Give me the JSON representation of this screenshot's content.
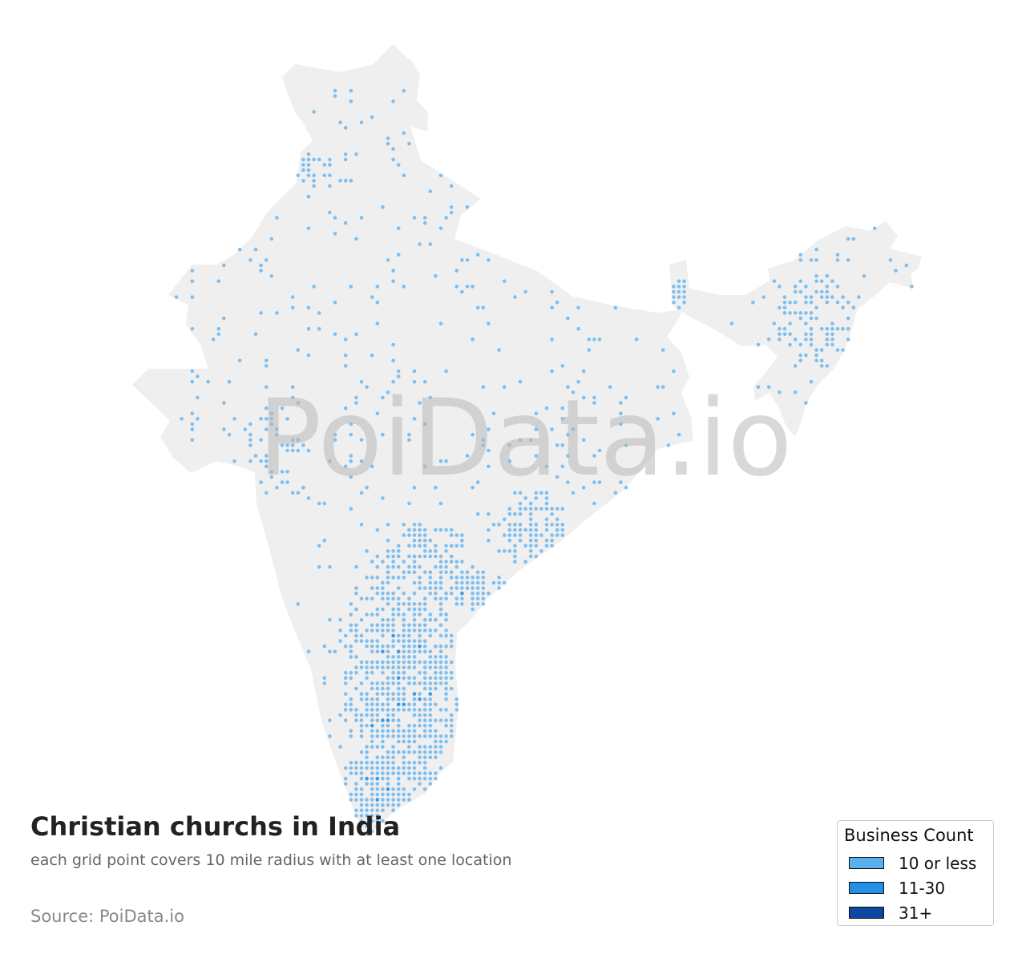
{
  "map": {
    "title": "Christian churchs in India",
    "subtitle": "each grid point covers 10 mile radius with at least one location",
    "source": "Source: PoiData.io",
    "watermark": "PoiData.io",
    "colors": {
      "land": "#efefef",
      "watermark": "#b8b8b8"
    },
    "legend": {
      "title": "Business Count",
      "items": [
        {
          "label": "10 or less",
          "color": "#5aaff0"
        },
        {
          "label": "11-30",
          "color": "#2391e8"
        },
        {
          "label": "31+",
          "color": "#0d47a1"
        }
      ]
    }
  }
}
